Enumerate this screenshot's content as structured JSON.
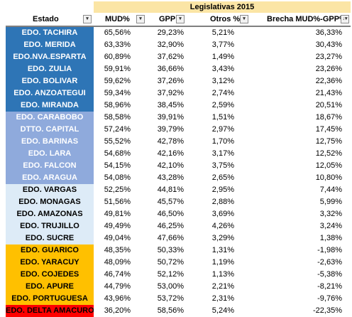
{
  "banner": "Legislativas 2015",
  "headers": [
    {
      "label": "Estado",
      "filter": "▾"
    },
    {
      "label": "MUD%",
      "filter": "▾"
    },
    {
      "label": "GPP %",
      "filter": "▾"
    },
    {
      "label": "Otros %",
      "filter": "▾"
    },
    {
      "label": "Brecha MUD%-GPP%",
      "filter": "↓▾"
    }
  ],
  "colors": {
    "banner": "#fbe5a5",
    "group_dark_blue": "#2e75b6",
    "group_light_blue": "#8faadc",
    "group_pale_blue": "#ddebf7",
    "group_orange": "#ffc000",
    "group_red": "#ff0000"
  },
  "rows": [
    {
      "state": "EDO. TACHIRA",
      "mud": "65,56%",
      "gpp": "29,23%",
      "otros": "5,21%",
      "brecha": "36,33%",
      "bg": "#2e75b6",
      "fg": "#ffffff"
    },
    {
      "state": "EDO. MERIDA",
      "mud": "63,33%",
      "gpp": "32,90%",
      "otros": "3,77%",
      "brecha": "30,43%",
      "bg": "#2e75b6",
      "fg": "#ffffff"
    },
    {
      "state": "EDO.NVA.ESPARTA",
      "mud": "60,89%",
      "gpp": "37,62%",
      "otros": "1,49%",
      "brecha": "23,27%",
      "bg": "#2e75b6",
      "fg": "#ffffff"
    },
    {
      "state": "EDO. ZULIA",
      "mud": "59,91%",
      "gpp": "36,66%",
      "otros": "3,43%",
      "brecha": "23,26%",
      "bg": "#2e75b6",
      "fg": "#ffffff"
    },
    {
      "state": "EDO. BOLIVAR",
      "mud": "59,62%",
      "gpp": "37,26%",
      "otros": "3,12%",
      "brecha": "22,36%",
      "bg": "#2e75b6",
      "fg": "#ffffff"
    },
    {
      "state": "EDO. ANZOATEGUI",
      "mud": "59,34%",
      "gpp": "37,92%",
      "otros": "2,74%",
      "brecha": "21,43%",
      "bg": "#2e75b6",
      "fg": "#ffffff"
    },
    {
      "state": "EDO. MIRANDA",
      "mud": "58,96%",
      "gpp": "38,45%",
      "otros": "2,59%",
      "brecha": "20,51%",
      "bg": "#2e75b6",
      "fg": "#ffffff"
    },
    {
      "state": "EDO. CARABOBO",
      "mud": "58,58%",
      "gpp": "39,91%",
      "otros": "1,51%",
      "brecha": "18,67%",
      "bg": "#8faadc",
      "fg": "#ffffff"
    },
    {
      "state": "DTTO. CAPITAL",
      "mud": "57,24%",
      "gpp": "39,79%",
      "otros": "2,97%",
      "brecha": "17,45%",
      "bg": "#8faadc",
      "fg": "#ffffff"
    },
    {
      "state": "EDO. BARINAS",
      "mud": "55,52%",
      "gpp": "42,78%",
      "otros": "1,70%",
      "brecha": "12,75%",
      "bg": "#8faadc",
      "fg": "#ffffff"
    },
    {
      "state": "EDO. LARA",
      "mud": "54,68%",
      "gpp": "42,16%",
      "otros": "3,17%",
      "brecha": "12,52%",
      "bg": "#8faadc",
      "fg": "#ffffff"
    },
    {
      "state": "EDO. FALCON",
      "mud": "54,15%",
      "gpp": "42,10%",
      "otros": "3,75%",
      "brecha": "12,05%",
      "bg": "#8faadc",
      "fg": "#ffffff"
    },
    {
      "state": "EDO. ARAGUA",
      "mud": "54,08%",
      "gpp": "43,28%",
      "otros": "2,65%",
      "brecha": "10,80%",
      "bg": "#8faadc",
      "fg": "#ffffff"
    },
    {
      "state": "EDO. VARGAS",
      "mud": "52,25%",
      "gpp": "44,81%",
      "otros": "2,95%",
      "brecha": "7,44%",
      "bg": "#ddebf7",
      "fg": "#000000"
    },
    {
      "state": "EDO. MONAGAS",
      "mud": "51,56%",
      "gpp": "45,57%",
      "otros": "2,88%",
      "brecha": "5,99%",
      "bg": "#ddebf7",
      "fg": "#000000"
    },
    {
      "state": "EDO. AMAZONAS",
      "mud": "49,81%",
      "gpp": "46,50%",
      "otros": "3,69%",
      "brecha": "3,32%",
      "bg": "#ddebf7",
      "fg": "#000000"
    },
    {
      "state": "EDO. TRUJILLO",
      "mud": "49,49%",
      "gpp": "46,25%",
      "otros": "4,26%",
      "brecha": "3,24%",
      "bg": "#ddebf7",
      "fg": "#000000"
    },
    {
      "state": "EDO. SUCRE",
      "mud": "49,04%",
      "gpp": "47,66%",
      "otros": "3,29%",
      "brecha": "1,38%",
      "bg": "#ddebf7",
      "fg": "#000000"
    },
    {
      "state": "EDO. GUARICO",
      "mud": "48,35%",
      "gpp": "50,33%",
      "otros": "1,31%",
      "brecha": "-1,98%",
      "bg": "#ffc000",
      "fg": "#000000"
    },
    {
      "state": "EDO. YARACUY",
      "mud": "48,09%",
      "gpp": "50,72%",
      "otros": "1,19%",
      "brecha": "-2,63%",
      "bg": "#ffc000",
      "fg": "#000000"
    },
    {
      "state": "EDO. COJEDES",
      "mud": "46,74%",
      "gpp": "52,12%",
      "otros": "1,13%",
      "brecha": "-5,38%",
      "bg": "#ffc000",
      "fg": "#000000"
    },
    {
      "state": "EDO. APURE",
      "mud": "44,79%",
      "gpp": "53,00%",
      "otros": "2,21%",
      "brecha": "-8,21%",
      "bg": "#ffc000",
      "fg": "#000000"
    },
    {
      "state": "EDO. PORTUGUESA",
      "mud": "43,96%",
      "gpp": "53,72%",
      "otros": "2,31%",
      "brecha": "-9,76%",
      "bg": "#ffc000",
      "fg": "#000000"
    },
    {
      "state": "EDO. DELTA AMACURO",
      "mud": "36,20%",
      "gpp": "58,56%",
      "otros": "5,24%",
      "brecha": "-22,35%",
      "bg": "#ff0000",
      "fg": "#000000"
    }
  ]
}
